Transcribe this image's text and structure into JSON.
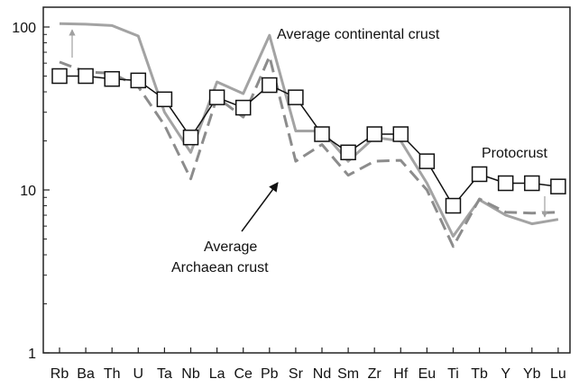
{
  "chart_data": {
    "type": "line",
    "yscale": "log",
    "ylim": [
      1,
      100
    ],
    "yticks": [
      1,
      10,
      100
    ],
    "ytick_labels": [
      "1",
      "10",
      "100"
    ],
    "categories": [
      "Rb",
      "Ba",
      "Th",
      "U",
      "Ta",
      "Nb",
      "La",
      "Ce",
      "Pb",
      "Sr",
      "Nd",
      "Sm",
      "Zr",
      "Hf",
      "Eu",
      "Ti",
      "Tb",
      "Y",
      "Yb",
      "Lu"
    ],
    "grid": false,
    "legend": "none",
    "series": [
      {
        "name": "Protocrust",
        "style": "solid-black-squares",
        "color": "#111111",
        "values": [
          50,
          50,
          48,
          47,
          36,
          21,
          37,
          32,
          44,
          37,
          22,
          17,
          22,
          22,
          15,
          8,
          12.5,
          11,
          11,
          10.5
        ]
      },
      {
        "name": "Average continental crust",
        "style": "solid-gray",
        "color": "#a3a3a3",
        "values": [
          105,
          104,
          102,
          88,
          30,
          17,
          46,
          39,
          89,
          23,
          23,
          15,
          21,
          20,
          11,
          5.2,
          8.7,
          7,
          6.2,
          6.6
        ]
      },
      {
        "name": "Average Archaean crust",
        "style": "dashed-gray",
        "color": "#8c8c8c",
        "values": [
          61,
          53,
          52,
          43,
          25,
          11.7,
          37,
          28,
          66,
          15,
          19,
          12.3,
          15,
          15.2,
          10,
          4.5,
          8.8,
          7.3,
          7.2,
          7.3
        ]
      }
    ],
    "annotations": [
      {
        "text": "Average continental crust"
      },
      {
        "text": "Protocrust"
      },
      {
        "text": "Average"
      },
      {
        "text": "Archaean crust"
      }
    ]
  }
}
